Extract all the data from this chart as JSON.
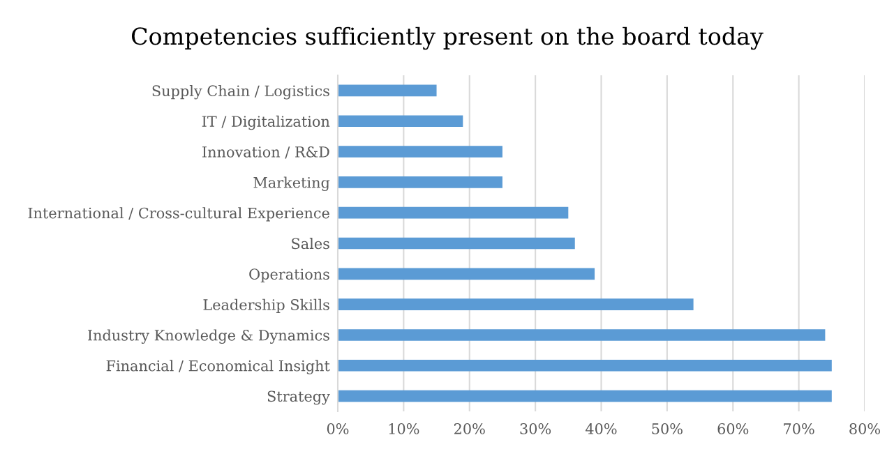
{
  "chart_data": {
    "type": "bar",
    "orientation": "horizontal",
    "title": "Competencies sufficiently present on the board today",
    "categories": [
      "Supply Chain / Logistics",
      "IT / Digitalization",
      "Innovation / R&D",
      "Marketing",
      "International / Cross-cultural Experience",
      "Sales",
      "Operations",
      "Leadership Skills",
      "Industry Knowledge & Dynamics",
      "Financial / Economical Insight",
      "Strategy"
    ],
    "values": [
      0.15,
      0.19,
      0.25,
      0.25,
      0.35,
      0.36,
      0.39,
      0.54,
      0.74,
      0.75,
      0.75
    ],
    "color": "#5b9bd5",
    "xlim": [
      0,
      0.8
    ],
    "xticks": [
      {
        "value": 0,
        "label": "0%"
      },
      {
        "value": 0.1,
        "label": "10%"
      },
      {
        "value": 0.2,
        "label": "20%"
      },
      {
        "value": 0.3,
        "label": "30%"
      },
      {
        "value": 0.4,
        "label": "40%"
      },
      {
        "value": 0.5,
        "label": "50%"
      },
      {
        "value": 0.6,
        "label": "60%"
      },
      {
        "value": 0.7,
        "label": "70%"
      },
      {
        "value": 0.8,
        "label": "80%"
      }
    ],
    "grid": "x"
  }
}
